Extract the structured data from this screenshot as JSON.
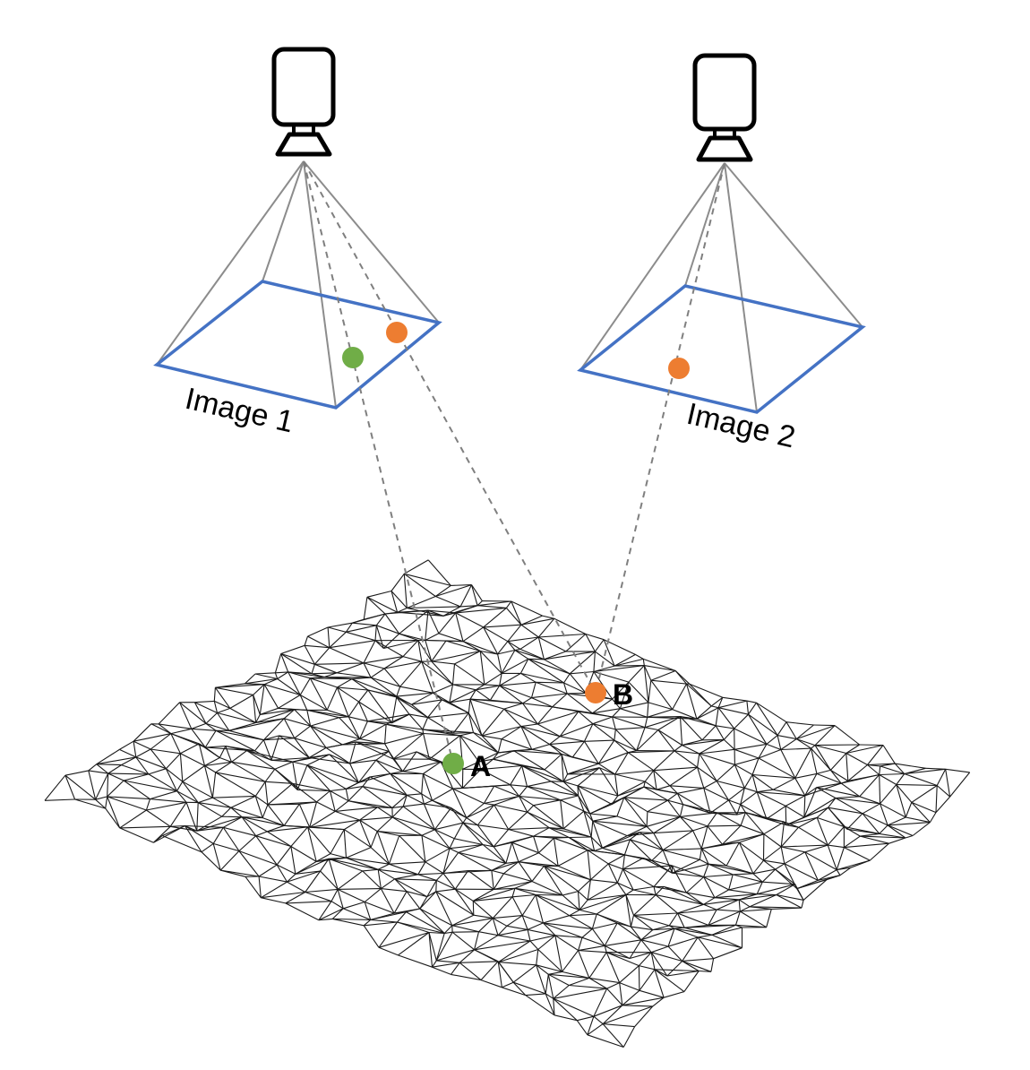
{
  "diagram": {
    "cameras": [
      {
        "id": "camera-1",
        "icon": "camera-icon"
      },
      {
        "id": "camera-2",
        "icon": "camera-icon"
      }
    ],
    "images": [
      {
        "label": "Image 1"
      },
      {
        "label": "Image 2"
      }
    ],
    "points": [
      {
        "label": "A",
        "color": "#70AD47"
      },
      {
        "label": "B",
        "color": "#ED7D31"
      }
    ],
    "colors": {
      "image_plane": "#4472C4",
      "frustum": "#8c8c8c",
      "ray": "#7f7f7f",
      "mesh": "#1a1a1a"
    }
  }
}
